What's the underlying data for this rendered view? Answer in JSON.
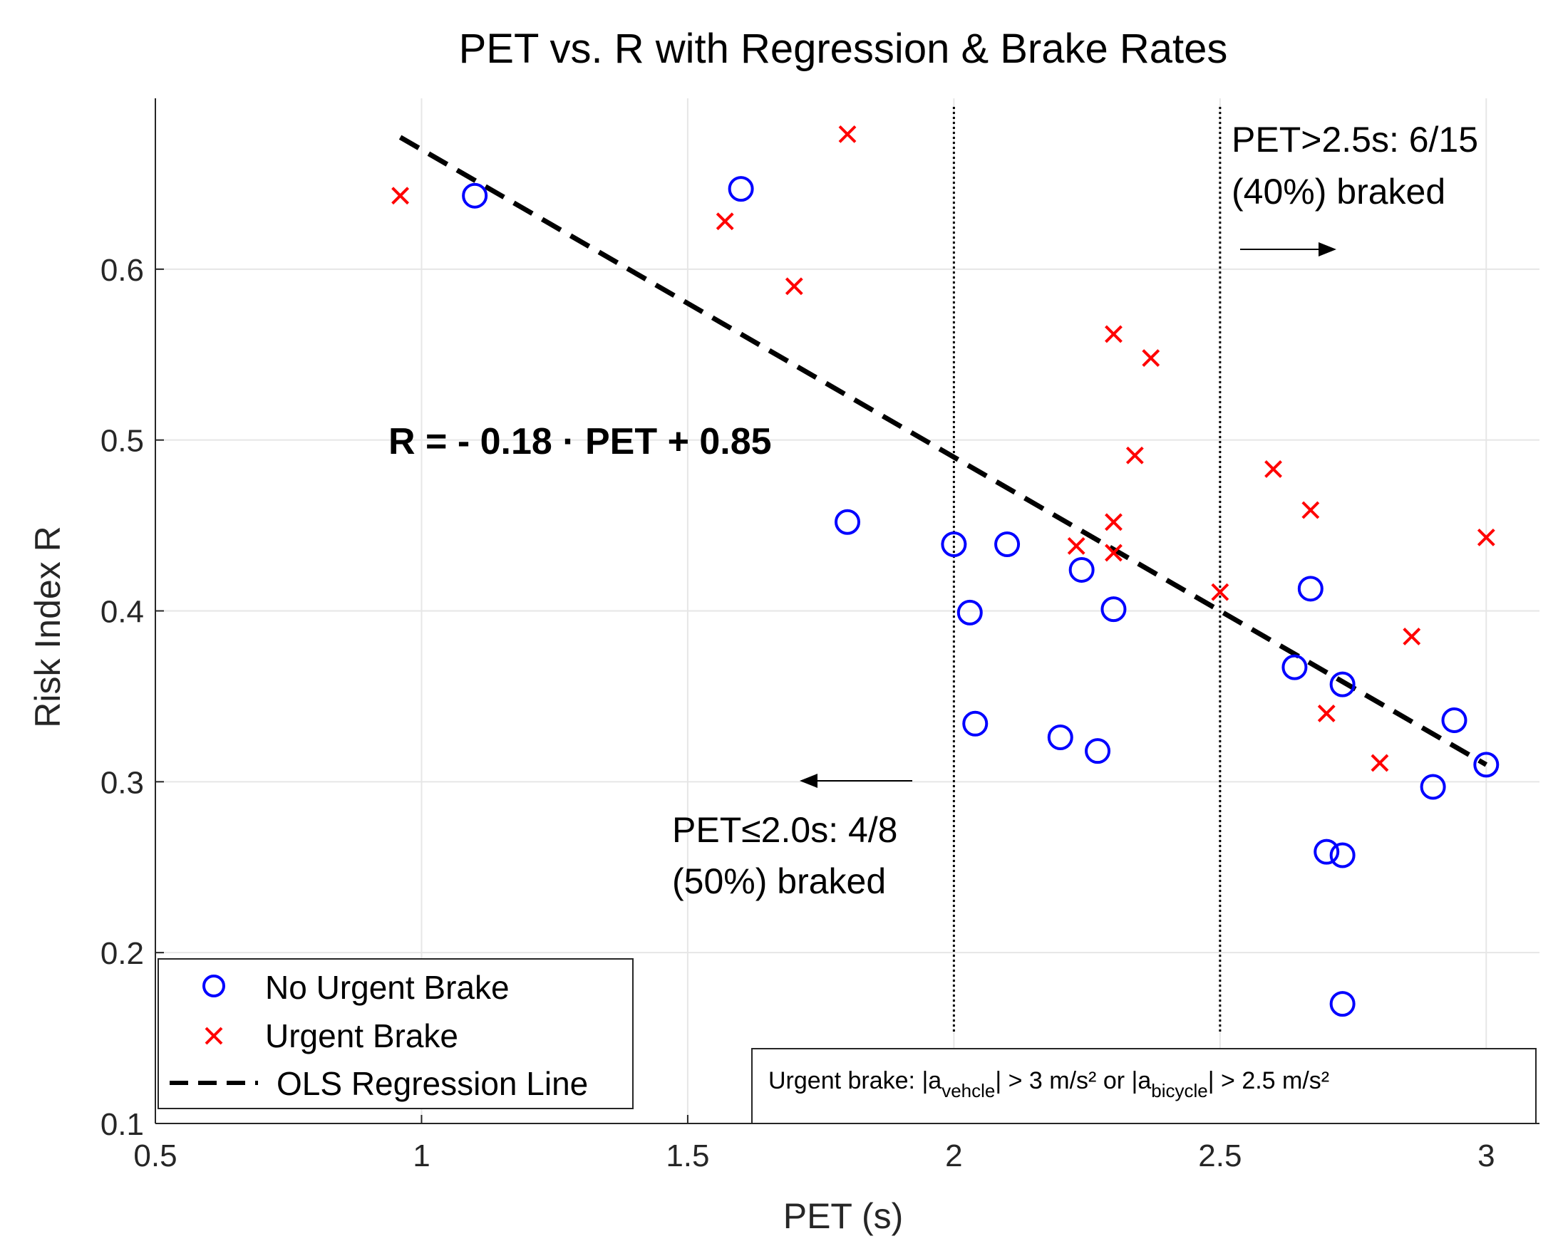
{
  "chart_data": {
    "type": "scatter",
    "title": "PET vs. R with Regression & Brake Rates",
    "xlabel": "PET (s)",
    "ylabel": "Risk Index R",
    "xlim": [
      0.5,
      3.1
    ],
    "ylim": [
      0.1,
      0.7
    ],
    "xticks": [
      0.5,
      1,
      1.5,
      2,
      2.5,
      3
    ],
    "xtick_labels": [
      "0.5",
      "1",
      "1.5",
      "2",
      "2.5",
      "3"
    ],
    "yticks": [
      0.1,
      0.2,
      0.3,
      0.4,
      0.5,
      0.6
    ],
    "ytick_labels": [
      "0.1",
      "0.2",
      "0.3",
      "0.4",
      "0.5",
      "0.6"
    ],
    "grid": true,
    "series": [
      {
        "name": "No Urgent Brake",
        "marker": "circle",
        "color": "#0000ff",
        "points": [
          [
            1.1,
            0.643
          ],
          [
            1.6,
            0.647
          ],
          [
            1.8,
            0.452
          ],
          [
            2.0,
            0.439
          ],
          [
            2.03,
            0.399
          ],
          [
            2.04,
            0.334
          ],
          [
            2.1,
            0.439
          ],
          [
            2.2,
            0.326
          ],
          [
            2.24,
            0.424
          ],
          [
            2.27,
            0.318
          ],
          [
            2.3,
            0.401
          ],
          [
            2.64,
            0.367
          ],
          [
            2.67,
            0.413
          ],
          [
            2.7,
            0.259
          ],
          [
            2.73,
            0.257
          ],
          [
            2.73,
            0.357
          ],
          [
            2.73,
            0.17
          ],
          [
            2.9,
            0.297
          ],
          [
            2.94,
            0.336
          ],
          [
            3.0,
            0.31
          ]
        ]
      },
      {
        "name": "Urgent Brake",
        "marker": "x",
        "color": "#ff0000",
        "points": [
          [
            0.96,
            0.643
          ],
          [
            1.57,
            0.628
          ],
          [
            1.7,
            0.59
          ],
          [
            1.8,
            0.679
          ],
          [
            2.23,
            0.438
          ],
          [
            2.3,
            0.562
          ],
          [
            2.3,
            0.452
          ],
          [
            2.3,
            0.434
          ],
          [
            2.34,
            0.491
          ],
          [
            2.37,
            0.548
          ],
          [
            2.5,
            0.411
          ],
          [
            2.6,
            0.483
          ],
          [
            2.67,
            0.459
          ],
          [
            2.7,
            0.34
          ],
          [
            2.8,
            0.311
          ],
          [
            2.86,
            0.385
          ],
          [
            3.0,
            0.443
          ]
        ]
      }
    ],
    "regression": {
      "name": "OLS Regression Line",
      "color": "#000000",
      "slope": -0.18,
      "intercept": 0.85,
      "x_range": [
        0.96,
        3.0
      ],
      "equation_label": "R = - 0.18 · PET + 0.85"
    },
    "threshold_lines": [
      2.0,
      2.5
    ],
    "annotations": {
      "right_line1": "PET>2.5s: 6/15",
      "right_line2": "(40%) braked",
      "left_line1": "PET≤2.0s: 4/8",
      "left_line2": "(50%) braked"
    },
    "legend": {
      "position": "bottom-left",
      "entries": [
        "No Urgent Brake",
        "Urgent Brake",
        "OLS Regression Line"
      ]
    },
    "note": {
      "position": "bottom-right",
      "prefix": "Urgent brake: |a",
      "sub1": "vehcle",
      "middle": "| > 3 m/s² or |a",
      "sub2": "bicycle",
      "suffix": "| > 2.5 m/s²"
    }
  }
}
